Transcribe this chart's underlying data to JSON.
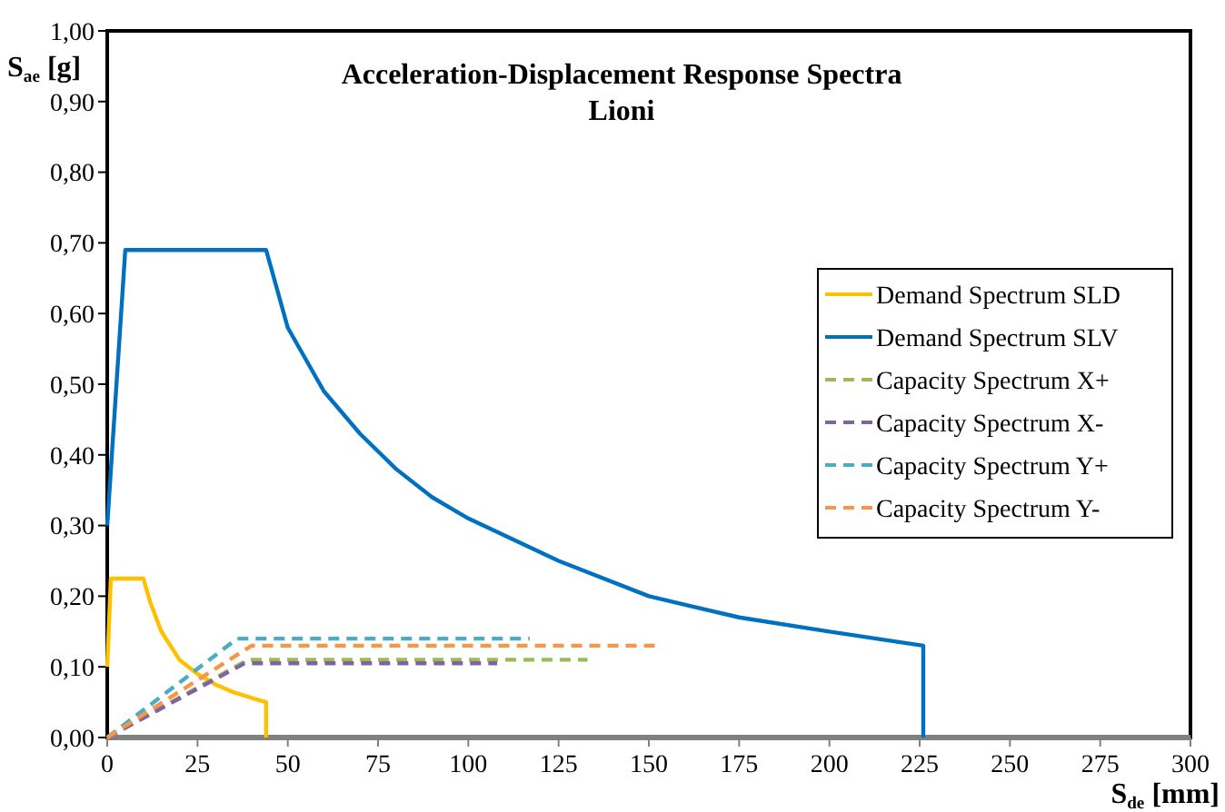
{
  "chart_data": {
    "type": "line",
    "title": "Acceleration-Displacement Response Spectra\nLioni",
    "xlabel": "S$_{de}$ [mm]",
    "ylabel": "S$_{ae}$ [g]",
    "xlim": [
      0,
      300
    ],
    "xticks": [
      0,
      25,
      50,
      75,
      100,
      125,
      150,
      175,
      200,
      225,
      250,
      275,
      300
    ],
    "ylim": [
      0,
      1
    ],
    "yticks": [
      {
        "value": 0,
        "label": "0,00"
      },
      {
        "value": 0.1,
        "label": "0,10"
      },
      {
        "value": 0.2,
        "label": "0,20"
      },
      {
        "value": 0.3,
        "label": "0,30"
      },
      {
        "value": 0.4,
        "label": "0,40"
      },
      {
        "value": 0.5,
        "label": "0,50"
      },
      {
        "value": 0.6,
        "label": "0,60"
      },
      {
        "value": 0.7,
        "label": "0,70"
      },
      {
        "value": 0.8,
        "label": "0,80"
      },
      {
        "value": 0.9,
        "label": "0,90"
      },
      {
        "value": 1,
        "label": "1,00"
      }
    ],
    "grid": false,
    "legend": "right",
    "series": [
      {
        "name": "Demand Spectrum SLD",
        "color": "#ffc000",
        "line_style": "solid",
        "x": [
          0,
          1,
          10,
          12,
          15,
          20,
          25,
          30,
          35,
          40,
          44,
          44
        ],
        "values": [
          0.1,
          0.225,
          0.225,
          0.19,
          0.15,
          0.11,
          0.09,
          0.075,
          0.064,
          0.056,
          0.05,
          0
        ]
      },
      {
        "name": "Demand Spectrum SLV",
        "color": "#0070c0",
        "line_style": "solid",
        "x": [
          0,
          5,
          44,
          50,
          60,
          70,
          80,
          90,
          100,
          125,
          150,
          175,
          200,
          226,
          226
        ],
        "values": [
          0.3,
          0.69,
          0.69,
          0.58,
          0.49,
          0.43,
          0.38,
          0.34,
          0.31,
          0.25,
          0.2,
          0.17,
          0.15,
          0.13,
          0
        ]
      },
      {
        "name": "Capacity Spectrum X+",
        "color": "#9bbb59",
        "line_style": "dashed",
        "x": [
          0,
          39,
          133
        ],
        "values": [
          0,
          0.11,
          0.11
        ]
      },
      {
        "name": "Capacity Spectrum X-",
        "color": "#8064a2",
        "line_style": "dashed",
        "x": [
          0,
          38,
          108
        ],
        "values": [
          0,
          0.105,
          0.105
        ]
      },
      {
        "name": "Capacity Spectrum Y+",
        "color": "#4bacc6",
        "line_style": "dashed",
        "x": [
          0,
          36,
          117
        ],
        "values": [
          0,
          0.14,
          0.14
        ]
      },
      {
        "name": "Capacity Spectrum Y-",
        "color": "#f79646",
        "line_style": "dashed",
        "x": [
          0,
          40,
          152
        ],
        "values": [
          0,
          0.13,
          0.13
        ]
      }
    ]
  }
}
